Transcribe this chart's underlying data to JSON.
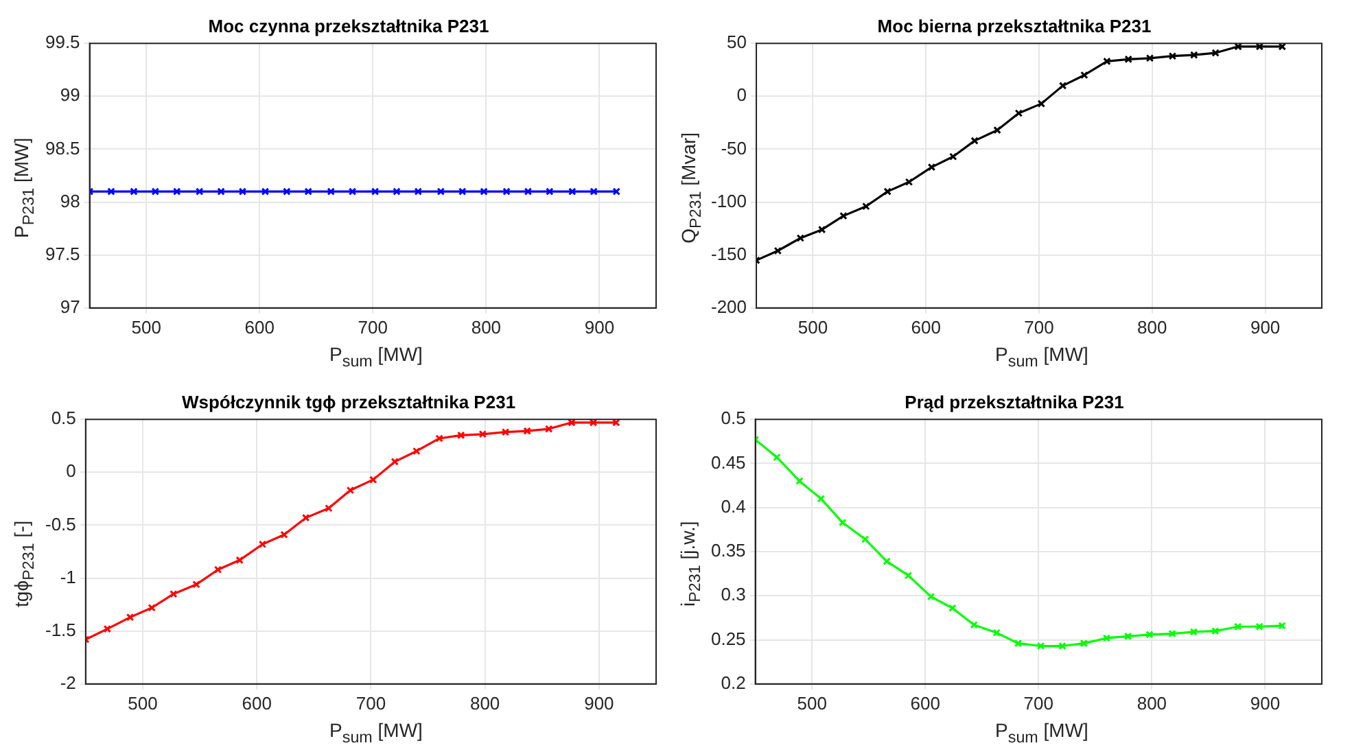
{
  "chart_data": [
    {
      "type": "line",
      "title": "Moc czynna przekształtnika P231",
      "xlabel": "P$_{sum}$ [MW]",
      "ylabel": "P$_{P231}$ [MW]",
      "x": [
        450,
        469,
        489,
        508,
        527,
        547,
        566,
        585,
        605,
        624,
        643,
        663,
        682,
        702,
        721,
        740,
        760,
        779,
        798,
        818,
        837,
        856,
        876,
        895,
        915
      ],
      "series": [
        {
          "color": "#0000ff",
          "values": [
            98.1,
            98.1,
            98.1,
            98.1,
            98.1,
            98.1,
            98.1,
            98.1,
            98.1,
            98.1,
            98.1,
            98.1,
            98.1,
            98.1,
            98.1,
            98.1,
            98.1,
            98.1,
            98.1,
            98.1,
            98.1,
            98.1,
            98.1,
            98.1,
            98.1
          ]
        }
      ],
      "xlim": [
        450,
        950
      ],
      "xticks": [
        500,
        600,
        700,
        800,
        900
      ],
      "ylim": [
        97,
        99.5
      ],
      "yticks": [
        97,
        97.5,
        98,
        98.5,
        99,
        99.5
      ],
      "grid": true,
      "marker": "cross",
      "line_style": "solid"
    },
    {
      "type": "line",
      "title": "Moc bierna przekształtnika P231",
      "xlabel": "P$_{sum}$ [MW]",
      "ylabel": "Q$_{P231}$ [Mvar]",
      "x": [
        450,
        469,
        489,
        508,
        527,
        547,
        566,
        585,
        605,
        624,
        643,
        663,
        682,
        702,
        721,
        740,
        760,
        779,
        798,
        818,
        837,
        856,
        876,
        895,
        915
      ],
      "series": [
        {
          "color": "#000000",
          "values": [
            -155,
            -146,
            -134,
            -126,
            -113,
            -104,
            -90,
            -81,
            -67,
            -57,
            -42,
            -32,
            -16,
            -7,
            10,
            20,
            33,
            35,
            36,
            38,
            39,
            41,
            47,
            47,
            47
          ]
        }
      ],
      "xlim": [
        450,
        950
      ],
      "xticks": [
        500,
        600,
        700,
        800,
        900
      ],
      "ylim": [
        -200,
        50
      ],
      "yticks": [
        -200,
        -150,
        -100,
        -50,
        0,
        50
      ],
      "grid": true,
      "marker": "cross",
      "line_style": "solid"
    },
    {
      "type": "line",
      "title": "Współczynnik tgϕ przekształtnika P231",
      "xlabel": "P$_{sum}$ [MW]",
      "ylabel": "tgϕ$_{P231}$ [-]",
      "x": [
        450,
        469,
        489,
        508,
        527,
        547,
        566,
        585,
        605,
        624,
        643,
        663,
        682,
        702,
        721,
        740,
        760,
        779,
        798,
        818,
        837,
        856,
        876,
        895,
        915
      ],
      "series": [
        {
          "color": "#ff0000",
          "values": [
            -1.58,
            -1.48,
            -1.37,
            -1.28,
            -1.15,
            -1.06,
            -0.92,
            -0.83,
            -0.68,
            -0.59,
            -0.43,
            -0.34,
            -0.17,
            -0.07,
            0.1,
            0.2,
            0.32,
            0.35,
            0.36,
            0.38,
            0.39,
            0.41,
            0.47,
            0.47,
            0.47
          ]
        }
      ],
      "xlim": [
        450,
        950
      ],
      "xticks": [
        500,
        600,
        700,
        800,
        900
      ],
      "ylim": [
        -2,
        0.5
      ],
      "yticks": [
        -2,
        -1.5,
        -1,
        -0.5,
        0,
        0.5
      ],
      "grid": true,
      "marker": "cross",
      "line_style": "solid"
    },
    {
      "type": "line",
      "title": "Prąd przekształtnika P231",
      "xlabel": "P$_{sum}$ [MW]",
      "ylabel": "i$_{P231}$ [j.w.]",
      "x": [
        450,
        469,
        489,
        508,
        527,
        547,
        566,
        585,
        605,
        624,
        643,
        663,
        682,
        702,
        721,
        740,
        760,
        779,
        798,
        818,
        837,
        856,
        876,
        895,
        915
      ],
      "series": [
        {
          "color": "#00ff00",
          "values": [
            0.477,
            0.457,
            0.43,
            0.41,
            0.383,
            0.364,
            0.339,
            0.323,
            0.299,
            0.286,
            0.267,
            0.258,
            0.246,
            0.243,
            0.243,
            0.246,
            0.252,
            0.254,
            0.256,
            0.257,
            0.259,
            0.26,
            0.265,
            0.265,
            0.266
          ]
        }
      ],
      "xlim": [
        450,
        950
      ],
      "xticks": [
        500,
        600,
        700,
        800,
        900
      ],
      "ylim": [
        0.2,
        0.5
      ],
      "yticks": [
        0.2,
        0.25,
        0.3,
        0.35,
        0.4,
        0.45,
        0.5
      ],
      "grid": true,
      "marker": "cross",
      "line_style": "solid"
    }
  ]
}
